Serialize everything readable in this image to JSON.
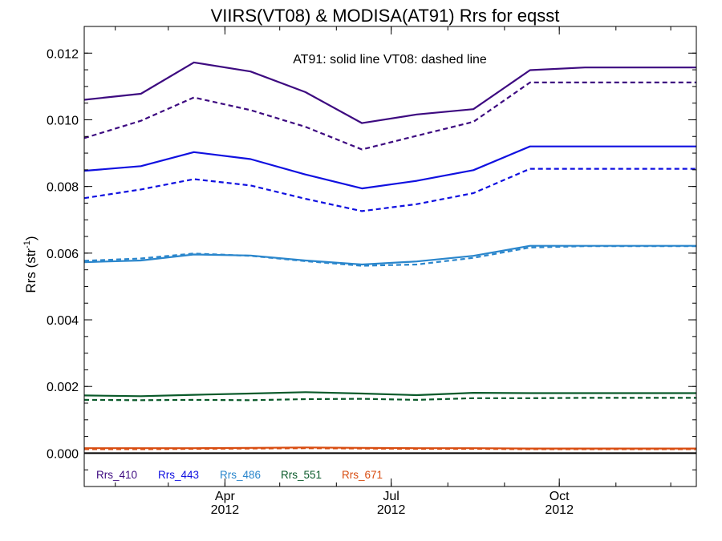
{
  "chart_data": {
    "type": "line",
    "title": "VIIRS(VT08) & MODISA(AT91)  Rrs for eqsst",
    "ylabel": "Rrs (str",
    "ylabel_sup": "-1",
    "ylabel_close": ")",
    "annotation": "AT91: solid line   VT08: dashed line",
    "xlim": [
      "2012-01-15",
      "2012-12-15"
    ],
    "ylim": [
      -0.001,
      0.0128
    ],
    "yticks": [
      0.0,
      0.002,
      0.004,
      0.006,
      0.008,
      0.01,
      0.012
    ],
    "ytick_labels": [
      "0.000",
      "0.002",
      "0.004",
      "0.006",
      "0.008",
      "0.010",
      "0.012"
    ],
    "xticks": [
      {
        "date": "2012-04-01",
        "label": "Apr",
        "year": "2012"
      },
      {
        "date": "2012-07-01",
        "label": "Jul",
        "year": "2012"
      },
      {
        "date": "2012-10-01",
        "label": "Oct",
        "year": "2012"
      }
    ],
    "grid": false,
    "legend_placement": "bottom-left",
    "x": [
      "2012-01-15",
      "2012-02-15",
      "2012-03-15",
      "2012-04-15",
      "2012-05-15",
      "2012-06-15",
      "2012-07-15",
      "2012-08-15",
      "2012-09-15",
      "2012-10-15",
      "2012-11-15",
      "2012-12-15"
    ],
    "series": [
      {
        "name": "Rrs_410",
        "color": "#3d0a80",
        "style": "solid",
        "values": [
          0.0106,
          0.01078,
          0.01172,
          0.01145,
          0.01083,
          0.0099,
          0.01016,
          0.01032,
          0.01149,
          0.01157,
          0.01157,
          0.01157
        ]
      },
      {
        "name": "Rrs_410",
        "color": "#3d0a80",
        "style": "dashed",
        "values": [
          0.00945,
          0.00997,
          0.01067,
          0.01029,
          0.00979,
          0.00911,
          0.00952,
          0.00994,
          0.01112,
          0.01112,
          0.01112,
          0.01112
        ]
      },
      {
        "name": "Rrs_443",
        "color": "#1010e0",
        "style": "solid",
        "values": [
          0.00847,
          0.00861,
          0.00903,
          0.00882,
          0.00836,
          0.00794,
          0.00817,
          0.00849,
          0.0092,
          0.0092,
          0.0092,
          0.0092
        ]
      },
      {
        "name": "Rrs_443",
        "color": "#1010e0",
        "style": "dashed",
        "values": [
          0.00765,
          0.00791,
          0.00822,
          0.00803,
          0.00763,
          0.00726,
          0.00747,
          0.0078,
          0.00853,
          0.00853,
          0.00853,
          0.00853
        ]
      },
      {
        "name": "Rrs_486",
        "color": "#2a86cc",
        "style": "solid",
        "values": [
          0.00573,
          0.00578,
          0.00596,
          0.00593,
          0.00578,
          0.00566,
          0.00575,
          0.00592,
          0.00622,
          0.00622,
          0.00622,
          0.00622
        ]
      },
      {
        "name": "Rrs_486",
        "color": "#2a86cc",
        "style": "dashed",
        "values": [
          0.00577,
          0.00584,
          0.00599,
          0.00592,
          0.00576,
          0.00562,
          0.00566,
          0.00586,
          0.00617,
          0.00621,
          0.00621,
          0.00621
        ]
      },
      {
        "name": "Rrs_551",
        "color": "#0a5a2a",
        "style": "solid",
        "values": [
          0.00173,
          0.00171,
          0.00175,
          0.00179,
          0.00183,
          0.00179,
          0.00174,
          0.00181,
          0.0018,
          0.0018,
          0.0018,
          0.0018
        ]
      },
      {
        "name": "Rrs_551",
        "color": "#0a5a2a",
        "style": "dashed",
        "values": [
          0.0016,
          0.00159,
          0.0016,
          0.00159,
          0.00162,
          0.00163,
          0.0016,
          0.00165,
          0.00165,
          0.00166,
          0.00166,
          0.00166
        ]
      },
      {
        "name": "Rrs_671",
        "color": "#d84c10",
        "style": "solid",
        "values": [
          0.00015,
          0.00015,
          0.00015,
          0.00016,
          0.00017,
          0.00016,
          0.00015,
          0.00015,
          0.00014,
          0.00014,
          0.00014,
          0.00014
        ]
      },
      {
        "name": "Rrs_671",
        "color": "#d84c10",
        "style": "dashed",
        "values": [
          0.00012,
          0.00012,
          0.00013,
          0.00014,
          0.00015,
          0.00014,
          0.00013,
          0.00013,
          0.00012,
          0.00012,
          0.00012,
          0.00012
        ]
      }
    ],
    "zero_line_color": "#000000"
  }
}
